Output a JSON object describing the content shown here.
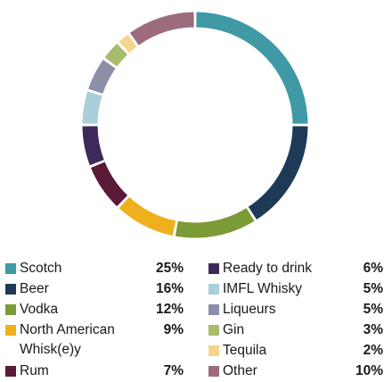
{
  "chart_data": {
    "type": "pie",
    "variant": "donut",
    "categories": [
      "Scotch",
      "Beer",
      "Vodka",
      "North American Whisk(e)y",
      "Rum",
      "Ready to drink",
      "IMFL Whisky",
      "Liqueurs",
      "Gin",
      "Tequila",
      "Other"
    ],
    "values": [
      25,
      16,
      12,
      9,
      7,
      6,
      5,
      5,
      3,
      2,
      10
    ],
    "value_labels": [
      "25%",
      "16%",
      "12%",
      "9%",
      "7%",
      "6%",
      "5%",
      "5%",
      "3%",
      "2%",
      "10%"
    ],
    "colors": [
      "#3f9aa6",
      "#1f3a57",
      "#7c9a35",
      "#efb01e",
      "#5b1a37",
      "#3d2a5c",
      "#a9cfd8",
      "#8b8fa8",
      "#a9bc6e",
      "#f5d58c",
      "#9c6b7e"
    ],
    "legend_placement": "bottom",
    "title": ""
  },
  "legend": {
    "left": [
      {
        "label": "Scotch",
        "value": "25%",
        "color": "#3f9aa6"
      },
      {
        "label": "Beer",
        "value": "16%",
        "color": "#1f3a57"
      },
      {
        "label": "Vodka",
        "value": "12%",
        "color": "#7c9a35"
      },
      {
        "label": "North American Whisk(e)y",
        "value": "9%",
        "color": "#efb01e"
      },
      {
        "label": "Rum",
        "value": "7%",
        "color": "#5b1a37"
      }
    ],
    "right": [
      {
        "label": "Ready to drink",
        "value": "6%",
        "color": "#3d2a5c"
      },
      {
        "label": "IMFL Whisky",
        "value": "5%",
        "color": "#a9cfd8"
      },
      {
        "label": "Liqueurs",
        "value": "5%",
        "color": "#8b8fa8"
      },
      {
        "label": "Gin",
        "value": "3%",
        "color": "#a9bc6e"
      },
      {
        "label": "Tequila",
        "value": "2%",
        "color": "#f5d58c"
      },
      {
        "label": "Other",
        "value": "10%",
        "color": "#9c6b7e"
      }
    ]
  }
}
